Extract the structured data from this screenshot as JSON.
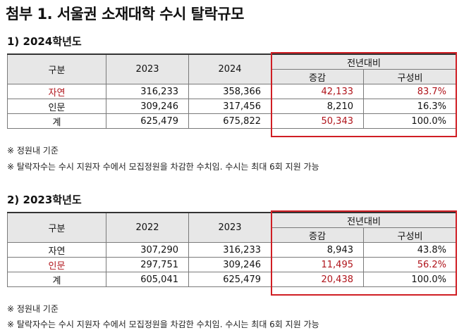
{
  "title": "첨부 1. 서울권 소재대학 수시 탈락규모",
  "sections": [
    {
      "heading": "1) 2024학년도",
      "headers": {
        "category": "구분",
        "year_a": "2023",
        "year_b": "2024",
        "group": "전년대비",
        "change": "증감",
        "share": "구성비"
      },
      "rows": [
        {
          "label": "자연",
          "a": "316,233",
          "b": "358,366",
          "change": "42,133",
          "share": "83.7%"
        },
        {
          "label": "인문",
          "a": "309,246",
          "b": "317,456",
          "change": "8,210",
          "share": "16.3%"
        },
        {
          "label": "계",
          "a": "625,479",
          "b": "675,822",
          "change": "50,343",
          "share": "100.0%"
        }
      ],
      "notes": [
        "※ 정원내 기준",
        "※ 탈락자수는 수시 지원자 수에서 모집정원을 차감한 수치임. 수시는 최대 6회 지원 가능"
      ]
    },
    {
      "heading": "2) 2023학년도",
      "headers": {
        "category": "구분",
        "year_a": "2022",
        "year_b": "2023",
        "group": "전년대비",
        "change": "증감",
        "share": "구성비"
      },
      "rows": [
        {
          "label": "자연",
          "a": "307,290",
          "b": "316,233",
          "change": "8,943",
          "share": "43.8%"
        },
        {
          "label": "인문",
          "a": "297,751",
          "b": "309,246",
          "change": "11,495",
          "share": "56.2%"
        },
        {
          "label": "계",
          "a": "605,041",
          "b": "625,479",
          "change": "20,438",
          "share": "100.0%"
        }
      ],
      "notes": [
        "※ 정원내 기준",
        "※ 탈락자수는 수시 지원자 수에서 모집정원을 차감한 수치임. 수시는 최대 6회 지원 가능"
      ]
    }
  ],
  "colors": {
    "highlight_red": "#b0141b",
    "box_red": "#d01e24",
    "header_gray": "#e7e7e7"
  }
}
